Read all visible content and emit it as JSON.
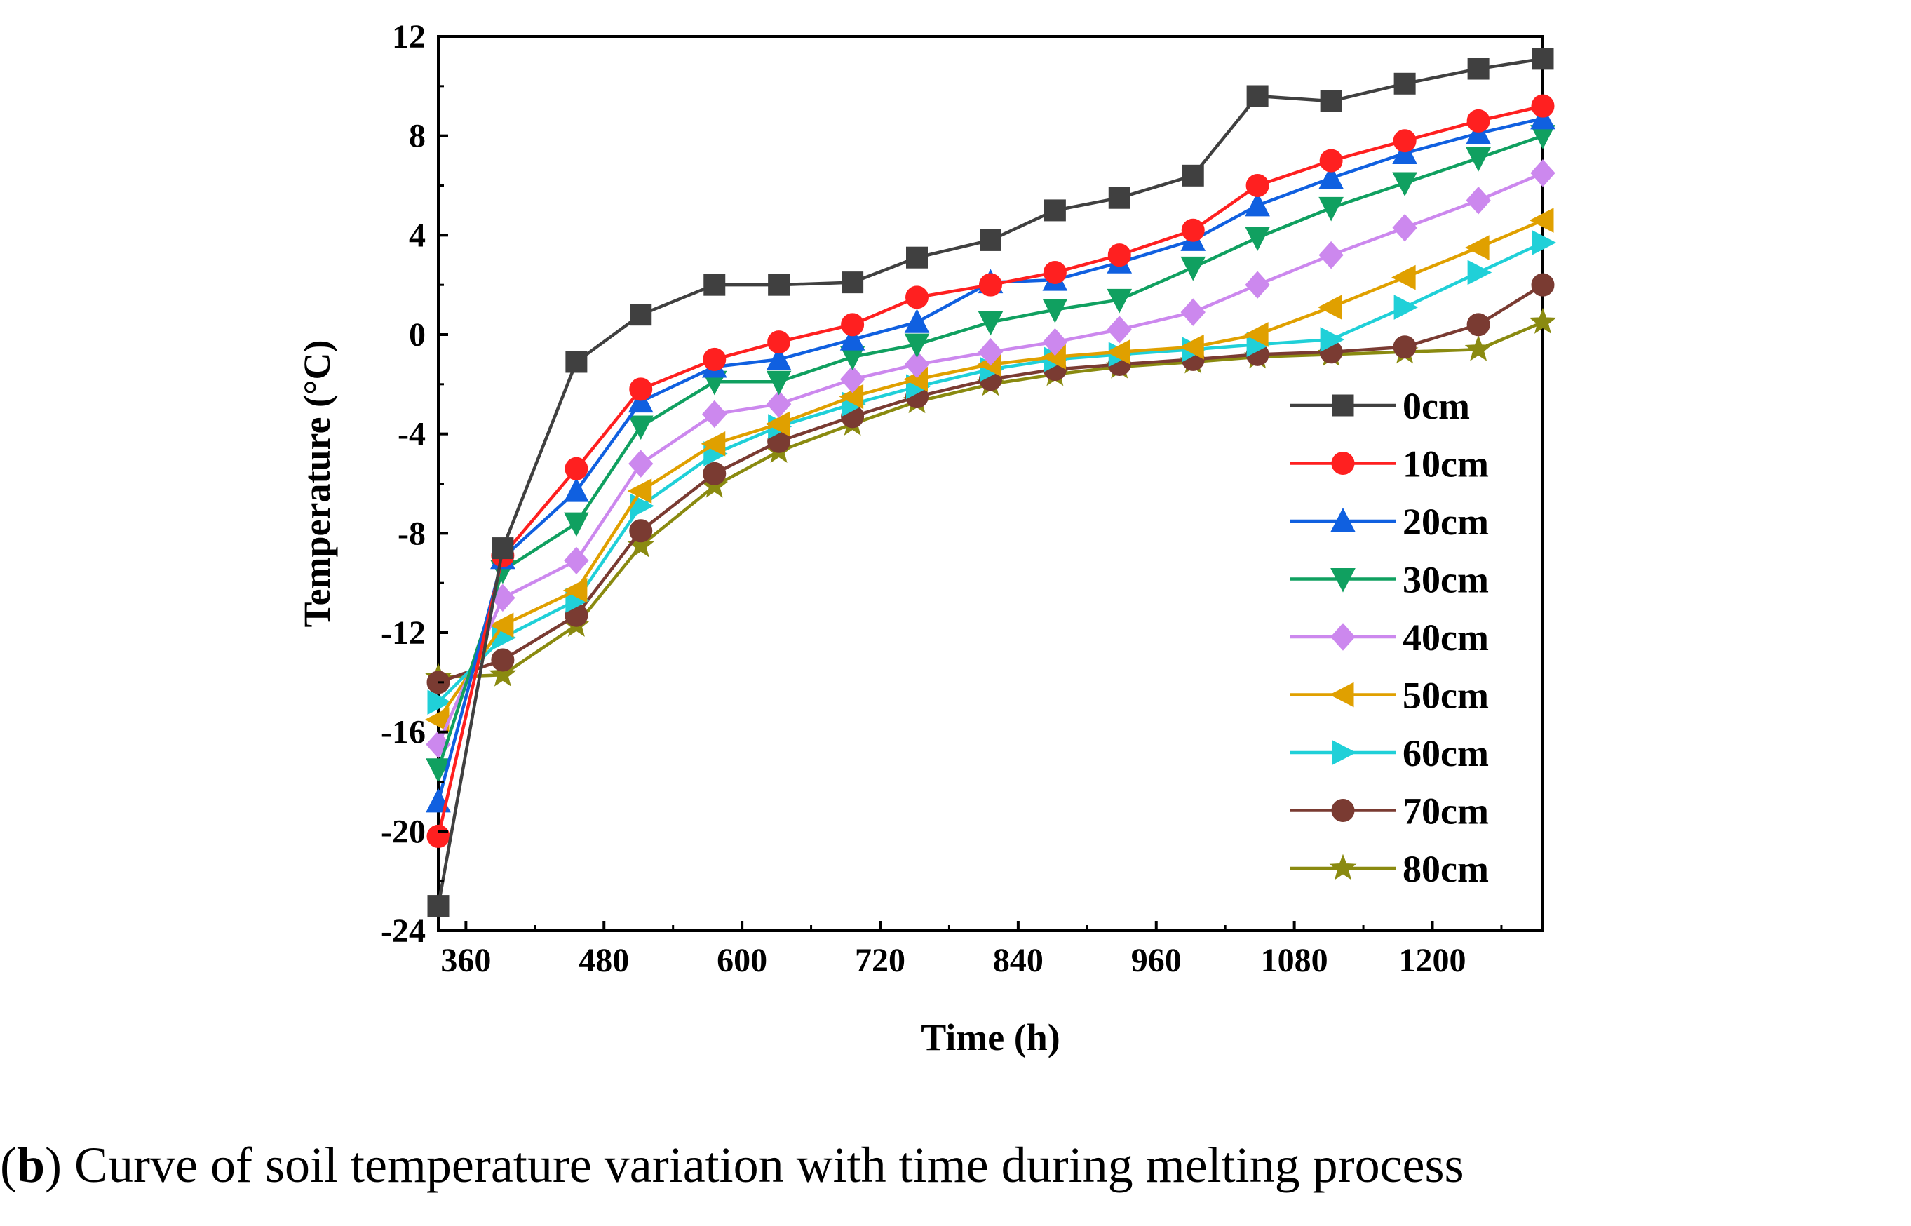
{
  "caption": {
    "open_paren": "(",
    "letter": "b",
    "rest": ") Curve of soil temperature variation with time during melting process"
  },
  "chart_data": {
    "type": "line",
    "title": "",
    "xlabel": "Time (h)",
    "ylabel": "Temperature (°C)",
    "xlim": [
      336,
      1296
    ],
    "ylim": [
      -24,
      12
    ],
    "xticks": [
      360,
      480,
      600,
      720,
      840,
      960,
      1080,
      1200
    ],
    "yticks": [
      -24,
      -20,
      -16,
      -12,
      -8,
      -4,
      0,
      4,
      8,
      12
    ],
    "legend_position": "right",
    "x": [
      336,
      392,
      456,
      512,
      576,
      632,
      696,
      752,
      816,
      872,
      928,
      992,
      1048,
      1112,
      1176,
      1240,
      1296
    ],
    "series": [
      {
        "name": "0cm",
        "color": "#404040",
        "marker": "square",
        "values": [
          -23.0,
          -8.6,
          -1.1,
          0.8,
          2.0,
          2.0,
          2.1,
          3.1,
          3.8,
          5.0,
          5.5,
          6.4,
          9.6,
          9.4,
          10.1,
          10.7,
          11.1
        ]
      },
      {
        "name": "10cm",
        "color": "#ff2020",
        "marker": "circle",
        "values": [
          -20.2,
          -8.9,
          -5.4,
          -2.2,
          -1.0,
          -0.3,
          0.4,
          1.5,
          2.0,
          2.5,
          3.2,
          4.2,
          6.0,
          7.0,
          7.8,
          8.6,
          9.2
        ]
      },
      {
        "name": "20cm",
        "color": "#1060e0",
        "marker": "triangle-up",
        "values": [
          -18.8,
          -9.0,
          -6.3,
          -2.7,
          -1.3,
          -1.0,
          -0.2,
          0.5,
          2.1,
          2.2,
          2.9,
          3.8,
          5.2,
          6.3,
          7.3,
          8.1,
          8.7
        ]
      },
      {
        "name": "30cm",
        "color": "#10a060",
        "marker": "triangle-down",
        "values": [
          -17.5,
          -9.5,
          -7.6,
          -3.7,
          -1.9,
          -1.9,
          -0.9,
          -0.4,
          0.5,
          1.0,
          1.4,
          2.7,
          3.9,
          5.1,
          6.1,
          7.1,
          8.0
        ]
      },
      {
        "name": "40cm",
        "color": "#cc88ee",
        "marker": "diamond",
        "values": [
          -16.5,
          -10.6,
          -9.1,
          -5.2,
          -3.2,
          -2.8,
          -1.8,
          -1.2,
          -0.7,
          -0.3,
          0.2,
          0.9,
          2.0,
          3.2,
          4.3,
          5.4,
          6.5
        ]
      },
      {
        "name": "50cm",
        "color": "#e0a000",
        "marker": "triangle-left",
        "values": [
          -15.5,
          -11.7,
          -10.3,
          -6.3,
          -4.4,
          -3.6,
          -2.5,
          -1.8,
          -1.2,
          -0.9,
          -0.7,
          -0.5,
          0.0,
          1.1,
          2.3,
          3.5,
          4.6
        ]
      },
      {
        "name": "60cm",
        "color": "#20d0d8",
        "marker": "triangle-right",
        "values": [
          -14.8,
          -12.2,
          -10.7,
          -6.9,
          -4.8,
          -3.7,
          -2.8,
          -2.1,
          -1.4,
          -1.0,
          -0.8,
          -0.6,
          -0.4,
          -0.2,
          1.1,
          2.5,
          3.7
        ]
      },
      {
        "name": "70cm",
        "color": "#7a3b32",
        "marker": "circle",
        "values": [
          -14.0,
          -13.1,
          -11.3,
          -7.9,
          -5.6,
          -4.3,
          -3.3,
          -2.5,
          -1.8,
          -1.4,
          -1.2,
          -1.0,
          -0.8,
          -0.7,
          -0.5,
          0.4,
          2.0
        ]
      },
      {
        "name": "80cm",
        "color": "#8a8a10",
        "marker": "star",
        "values": [
          -13.8,
          -13.7,
          -11.7,
          -8.5,
          -6.1,
          -4.7,
          -3.6,
          -2.7,
          -2.0,
          -1.6,
          -1.3,
          -1.1,
          -0.9,
          -0.8,
          -0.7,
          -0.6,
          0.5
        ]
      }
    ]
  }
}
